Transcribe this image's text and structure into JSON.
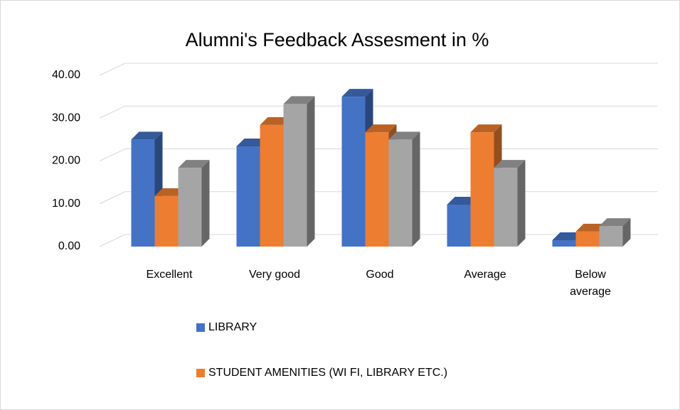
{
  "chart_data": {
    "type": "bar3d",
    "title": "Alumni's Feedback Assesment in %",
    "categories": [
      "Excellent",
      "Very good",
      "Good",
      "Average",
      "Below average"
    ],
    "series": [
      {
        "name": "LIBRARY",
        "color": "#4472c4",
        "values": [
          25.0,
          23.4,
          35.0,
          9.8,
          1.5
        ]
      },
      {
        "name": "STUDENT AMENITIES (WI FI, LIBRARY ETC.)",
        "color": "#ed7d31",
        "values": [
          11.8,
          28.4,
          26.7,
          26.7,
          3.5
        ]
      },
      {
        "color": "#a5a5a5",
        "values": [
          18.4,
          33.3,
          25.0,
          18.4,
          4.8
        ]
      }
    ],
    "ylim": [
      0,
      40
    ],
    "yticks": [
      {
        "value": 0,
        "label": "0.00"
      },
      {
        "value": 10,
        "label": "10.00"
      },
      {
        "value": 20,
        "label": "20.00"
      },
      {
        "value": 30,
        "label": "30.00"
      },
      {
        "value": 40,
        "label": "40.00"
      }
    ],
    "grid": true
  }
}
